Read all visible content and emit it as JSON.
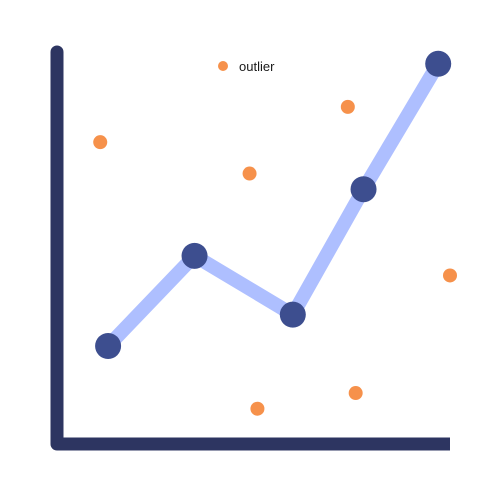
{
  "chart_data": {
    "type": "scatter",
    "grid": false,
    "tick_labels": false,
    "xlim": [
      0,
      10
    ],
    "ylim": [
      0,
      10
    ],
    "legend": {
      "placement": "top-center",
      "entries": [
        {
          "label": "outlier",
          "color": "#f6914b",
          "marker": "circle"
        }
      ]
    },
    "series": [
      {
        "kind": "line",
        "line_color": "#aebfff",
        "marker_color": "#3d4e8f",
        "points": [
          {
            "x": 1.3,
            "y": 2.5
          },
          {
            "x": 3.5,
            "y": 4.8
          },
          {
            "x": 6.0,
            "y": 3.3
          },
          {
            "x": 7.8,
            "y": 6.5
          },
          {
            "x": 9.7,
            "y": 9.7
          }
        ]
      },
      {
        "name": "outlier",
        "kind": "scatter",
        "marker_color": "#f6914b",
        "points": [
          {
            "x": 1.1,
            "y": 7.7
          },
          {
            "x": 4.9,
            "y": 6.9
          },
          {
            "x": 7.4,
            "y": 8.6
          },
          {
            "x": 10.0,
            "y": 4.3
          },
          {
            "x": 7.6,
            "y": 1.3
          },
          {
            "x": 5.1,
            "y": 0.9
          }
        ]
      }
    ],
    "colors": {
      "axis": "#2d3561",
      "background": "#ffffff",
      "legend_text": "#1a1a1a"
    }
  }
}
